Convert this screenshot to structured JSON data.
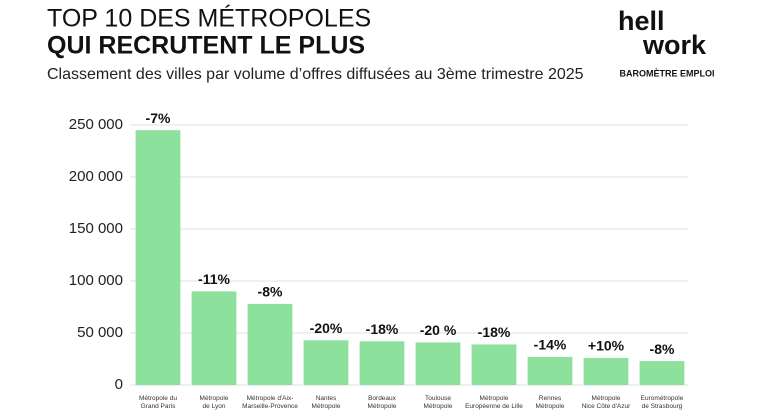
{
  "header": {
    "title_line1": "TOP 10 DES MÉTROPOLES",
    "title_line2": "QUI RECRUTENT LE PLUS",
    "logo_lines": [
      "hell",
      "work"
    ],
    "logo_caption": "BAROMÈTRE EMPLOI"
  },
  "chart_data": {
    "type": "bar",
    "subtitle": "Classement des villes par volume d’offres diffusées au 3ème trimestre 2025",
    "categories": [
      "Métropole du\nGrand Paris",
      "Métropole\nde Lyon",
      "Métropole d'Aix-\nMarseille-Provence",
      "Nantes\nMétropole",
      "Bordeaux\nMétropole",
      "Toulouse\nMétropole",
      "Métropole\nEuropéenne de Lille",
      "Rennes\nMétropole",
      "Métropole\nNice Côte d'Azur",
      "Eurométropole\nde Strasbourg"
    ],
    "values": [
      245000,
      90000,
      78000,
      43000,
      42000,
      41000,
      39000,
      27000,
      26000,
      23000
    ],
    "annotations": [
      "-7%",
      "-11%",
      "-8%",
      "-20%",
      "-18%",
      "-20 %",
      "-18%",
      "-14%",
      "+10%",
      "-8%"
    ],
    "color": "#8ee19c",
    "ylim": [
      0,
      250000
    ],
    "yticks": [
      0,
      {
        "value": 50000,
        "label": "50 000"
      },
      {
        "value": 100000,
        "label": "100 000"
      },
      {
        "value": 150000,
        "label": "150 000"
      },
      {
        "value": 200000,
        "label": "200 000"
      },
      {
        "value": 250000,
        "label": "250 000"
      }
    ],
    "grid": true
  }
}
